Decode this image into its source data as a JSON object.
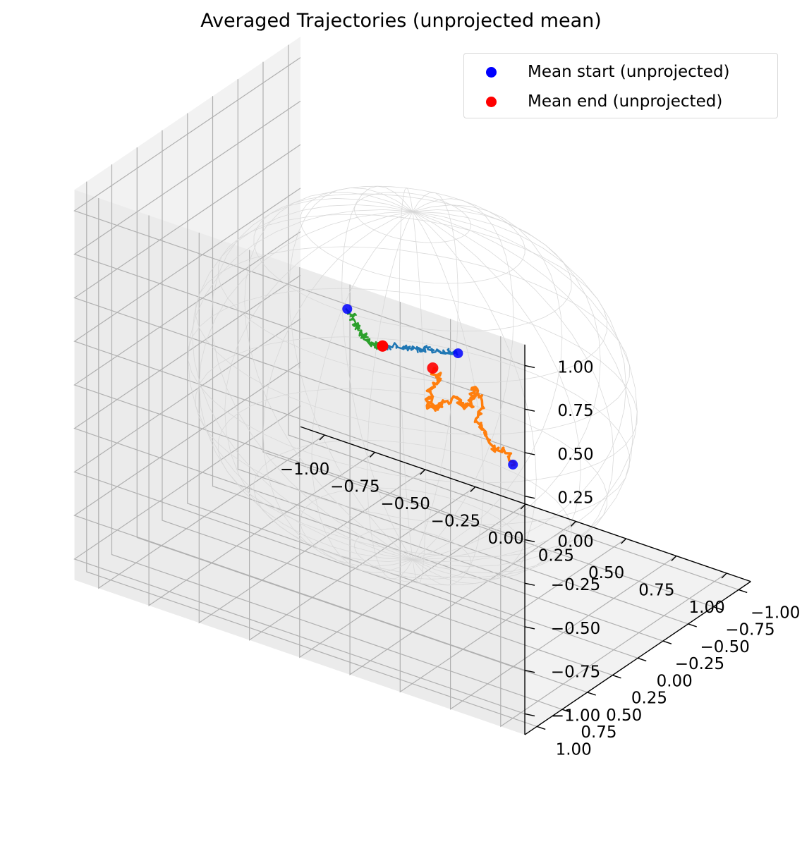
{
  "chart_data": {
    "type": "scatter",
    "title": "Averaged Trajectories (unprojected mean)",
    "projection": "3d",
    "xlim": [
      -1.0,
      1.0
    ],
    "ylim": [
      -1.0,
      1.0
    ],
    "zlim": [
      -1.0,
      1.0
    ],
    "xticks": [
      "−1.00",
      "−0.75",
      "−0.50",
      "−0.25",
      "0.00",
      "0.25",
      "0.50",
      "0.75",
      "1.00"
    ],
    "yticks": [
      "−1.00",
      "−0.75",
      "−0.50",
      "−0.25",
      "0.00",
      "0.25",
      "0.50",
      "0.75",
      "1.00"
    ],
    "zticks": [
      "−1.00",
      "−0.75",
      "−0.50",
      "−0.25",
      "0.00",
      "0.25",
      "0.50",
      "0.75",
      "1.00"
    ],
    "grid": true,
    "unit_sphere_wireframe": true,
    "legend": {
      "placement": "upper right",
      "entries": [
        {
          "label": "Mean start (unprojected)",
          "color": "#0000ff"
        },
        {
          "label": "Mean end (unprojected)",
          "color": "#ff0000"
        }
      ]
    },
    "series": [
      {
        "color": "#1f77b4",
        "start": {
          "x": -0.05,
          "y": -0.55,
          "z": -0.05
        },
        "end": {
          "x": -0.25,
          "y": -0.2,
          "z": 0.05
        },
        "points": [
          [
            -0.05,
            -0.55,
            -0.05
          ],
          [
            -0.07,
            -0.5,
            -0.03
          ],
          [
            -0.1,
            -0.45,
            -0.02
          ],
          [
            -0.13,
            -0.4,
            0.0
          ],
          [
            -0.16,
            -0.35,
            0.01
          ],
          [
            -0.19,
            -0.3,
            0.02
          ],
          [
            -0.22,
            -0.25,
            0.04
          ],
          [
            -0.25,
            -0.2,
            0.05
          ]
        ]
      },
      {
        "color": "#ff7f0e",
        "start": {
          "x": 0.8,
          "y": 0.6,
          "z": 0.1
        },
        "end": {
          "x": 0.15,
          "y": 0.1,
          "z": 0.2
        },
        "points": [
          [
            0.8,
            0.6,
            0.1
          ],
          [
            0.74,
            0.55,
            0.14
          ],
          [
            0.68,
            0.55,
            0.12
          ],
          [
            0.6,
            0.5,
            0.18
          ],
          [
            0.55,
            0.45,
            0.2
          ],
          [
            0.55,
            0.4,
            0.3
          ],
          [
            0.5,
            0.4,
            0.35
          ],
          [
            0.48,
            0.35,
            0.27
          ],
          [
            0.45,
            0.3,
            0.2
          ],
          [
            0.4,
            0.28,
            0.15
          ],
          [
            0.35,
            0.28,
            0.18
          ],
          [
            0.3,
            0.3,
            0.14
          ],
          [
            0.25,
            0.25,
            0.08
          ],
          [
            0.2,
            0.22,
            0.04
          ],
          [
            0.15,
            0.15,
            0.02
          ],
          [
            0.15,
            0.12,
            0.1
          ],
          [
            0.2,
            0.12,
            0.15
          ],
          [
            0.15,
            0.1,
            0.2
          ]
        ]
      },
      {
        "color": "#2ca02c",
        "start": {
          "x": -0.25,
          "y": 0.15,
          "z": 0.4
        },
        "end": {
          "x": -0.25,
          "y": -0.2,
          "z": 0.05
        },
        "points": [
          [
            -0.25,
            0.15,
            0.4
          ],
          [
            -0.25,
            0.1,
            0.34
          ],
          [
            -0.26,
            0.05,
            0.28
          ],
          [
            -0.27,
            0.0,
            0.22
          ],
          [
            -0.27,
            -0.05,
            0.16
          ],
          [
            -0.28,
            -0.1,
            0.11
          ],
          [
            -0.26,
            -0.15,
            0.07
          ],
          [
            -0.25,
            -0.2,
            0.05
          ]
        ]
      }
    ]
  }
}
